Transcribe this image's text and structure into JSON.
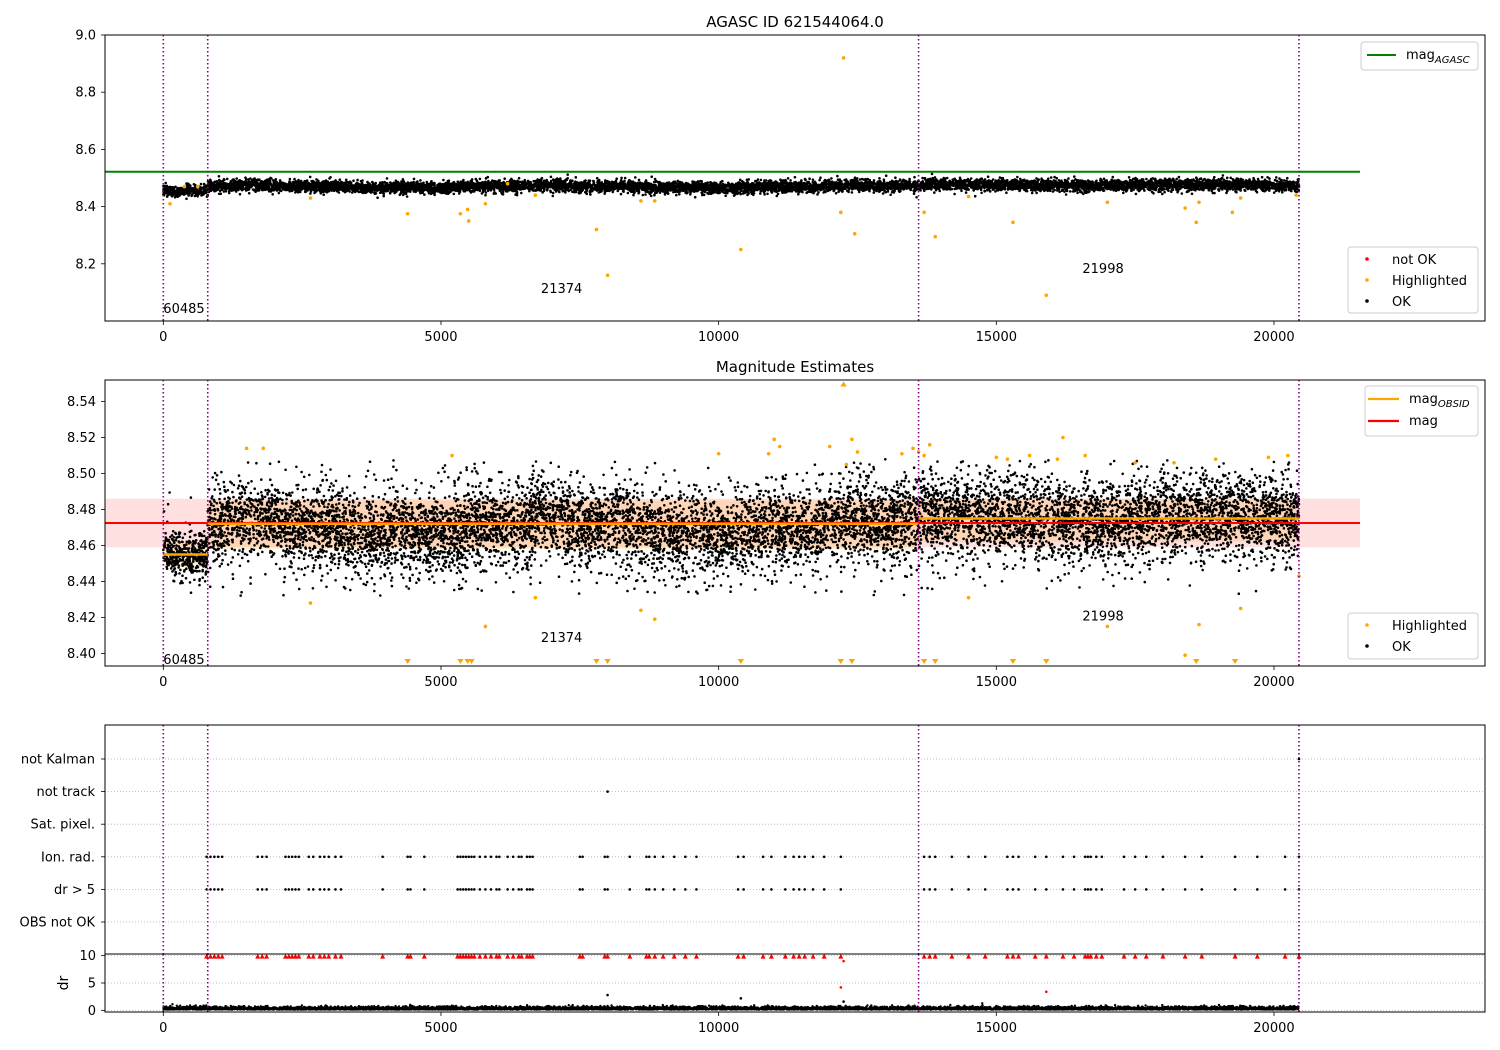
{
  "colors": {
    "ok": "#000000",
    "highlighted": "#ffa500",
    "not_ok": "#ff0000",
    "agasc_line": "#008000",
    "obsid_line": "#ffa500",
    "mag_line": "#ff0000",
    "obs_boundary": "#800080",
    "band_fill": "#ff0000",
    "grid": "#b0b0b0"
  },
  "chart_data": [
    {
      "type": "scatter",
      "title": "AGASC ID 621544064.0",
      "xlim": [
        -1050,
        23800
      ],
      "ylim": [
        8.0,
        9.0
      ],
      "x_ticks": [
        0,
        5000,
        10000,
        15000,
        20000
      ],
      "y_ticks": [
        8.2,
        8.4,
        8.6,
        8.8,
        9.0
      ],
      "obs_boundaries": [
        0,
        800,
        13600,
        20450
      ],
      "obs_labels": [
        {
          "text": "60485",
          "x": 0,
          "y": 8.045
        },
        {
          "text": "21374",
          "x": 6800,
          "y": 8.115
        },
        {
          "text": "21998",
          "x": 16550,
          "y": 8.185
        }
      ],
      "agasc_mag": 8.522,
      "agasc_line_x": [
        -1050,
        21550
      ],
      "ok_band": {
        "center": 8.472,
        "half_width": 0.018
      },
      "highlighted_points": [
        [
          120,
          8.41
        ],
        [
          380,
          8.47
        ],
        [
          620,
          8.47
        ],
        [
          2650,
          8.43
        ],
        [
          4400,
          8.375
        ],
        [
          5350,
          8.375
        ],
        [
          5480,
          8.39
        ],
        [
          5500,
          8.35
        ],
        [
          5800,
          8.41
        ],
        [
          6200,
          8.48
        ],
        [
          6700,
          8.44
        ],
        [
          7800,
          8.32
        ],
        [
          8000,
          8.16
        ],
        [
          8600,
          8.42
        ],
        [
          8850,
          8.42
        ],
        [
          10400,
          8.25
        ],
        [
          12200,
          8.38
        ],
        [
          12250,
          8.92
        ],
        [
          12450,
          8.305
        ],
        [
          13700,
          8.38
        ],
        [
          13900,
          8.295
        ],
        [
          14500,
          8.435
        ],
        [
          15300,
          8.345
        ],
        [
          15900,
          8.09
        ],
        [
          17000,
          8.415
        ],
        [
          18400,
          8.395
        ],
        [
          18600,
          8.345
        ],
        [
          18650,
          8.415
        ],
        [
          19250,
          8.38
        ],
        [
          19400,
          8.43
        ],
        [
          20400,
          8.44
        ]
      ],
      "legend_line": [
        {
          "label": "mag",
          "subscript": "AGASC"
        }
      ],
      "legend_points": [
        "not OK",
        "Highlighted",
        "OK"
      ]
    },
    {
      "type": "scatter",
      "title": "Magnitude Estimates",
      "xlim": [
        -1050,
        23800
      ],
      "ylim": [
        8.393,
        8.552
      ],
      "x_ticks": [
        0,
        5000,
        10000,
        15000,
        20000
      ],
      "y_ticks": [
        8.4,
        8.42,
        8.44,
        8.46,
        8.48,
        8.5,
        8.52,
        8.54
      ],
      "obs_boundaries": [
        0,
        800,
        13600,
        20450
      ],
      "obs_labels": [
        {
          "text": "60485",
          "x": 0,
          "y": 8.397
        },
        {
          "text": "21374",
          "x": 6800,
          "y": 8.409
        },
        {
          "text": "21998",
          "x": 16550,
          "y": 8.421
        }
      ],
      "mag": 8.4725,
      "mag_line_x": [
        -1050,
        21550
      ],
      "mag_band": [
        8.459,
        8.486
      ],
      "obsid_mags": [
        {
          "x": [
            0,
            800
          ],
          "mag": 8.455
        },
        {
          "x": [
            800,
            13600
          ],
          "mag": 8.472
        },
        {
          "x": [
            13600,
            20450
          ],
          "mag": 8.475
        }
      ],
      "obsid_bands": [
        {
          "x": [
            0,
            800
          ],
          "range": [
            8.448,
            8.462
          ]
        },
        {
          "x": [
            800,
            13600
          ],
          "range": [
            8.458,
            8.485
          ]
        },
        {
          "x": [
            13600,
            20450
          ],
          "range": [
            8.462,
            8.486
          ]
        }
      ],
      "highlighted_points": [
        [
          1500,
          8.514
        ],
        [
          1800,
          8.514
        ],
        [
          2650,
          8.428
        ],
        [
          5200,
          8.51
        ],
        [
          5800,
          8.415
        ],
        [
          6700,
          8.431
        ],
        [
          8600,
          8.424
        ],
        [
          8850,
          8.419
        ],
        [
          10000,
          8.511
        ],
        [
          10900,
          8.511
        ],
        [
          11000,
          8.519
        ],
        [
          11100,
          8.515
        ],
        [
          12000,
          8.515
        ],
        [
          12300,
          8.505
        ],
        [
          12400,
          8.519
        ],
        [
          12500,
          8.512
        ],
        [
          13300,
          8.511
        ],
        [
          13500,
          8.514
        ],
        [
          13600,
          8.512
        ],
        [
          13700,
          8.51
        ],
        [
          13800,
          8.516
        ],
        [
          14500,
          8.431
        ],
        [
          15000,
          8.509
        ],
        [
          15200,
          8.508
        ],
        [
          15600,
          8.51
        ],
        [
          16100,
          8.508
        ],
        [
          16200,
          8.52
        ],
        [
          16600,
          8.51
        ],
        [
          17000,
          8.415
        ],
        [
          17500,
          8.506
        ],
        [
          18200,
          8.506
        ],
        [
          18400,
          8.399
        ],
        [
          18650,
          8.416
        ],
        [
          18950,
          8.508
        ],
        [
          19400,
          8.425
        ],
        [
          19900,
          8.509
        ],
        [
          20250,
          8.51
        ],
        [
          20450,
          8.443
        ]
      ],
      "below_axis_markers": [
        4400,
        5350,
        5480,
        5550,
        7800,
        8000,
        10400,
        12200,
        12400,
        13700,
        13900,
        15300,
        15900,
        18600,
        19300
      ],
      "above_axis_markers": [
        12250
      ],
      "legend_line": [
        {
          "label": "mag",
          "subscript": "OBSID"
        },
        {
          "label": "mag",
          "subscript": ""
        }
      ],
      "legend_points": [
        "Highlighted",
        "OK"
      ]
    },
    {
      "type": "scatter",
      "xlim": [
        -1050,
        23800
      ],
      "x_ticks": [
        0,
        5000,
        10000,
        15000,
        20000
      ],
      "categories": [
        "not Kalman",
        "not track",
        "Sat. pixel.",
        "Ion. rad.",
        "dr > 5",
        "OBS not OK"
      ],
      "obs_boundaries": [
        0,
        800,
        13600,
        20450
      ],
      "flag_events": {
        "not Kalman": [
          20450
        ],
        "not track": [
          8000
        ],
        "Sat. pixel.": [],
        "Ion. rad.": [
          780,
          850,
          920,
          990,
          1060,
          1700,
          1780,
          1860,
          2200,
          2260,
          2320,
          2380,
          2440,
          2620,
          2700,
          2820,
          2900,
          2980,
          3100,
          3200,
          3950,
          4400,
          4450,
          4700,
          5300,
          5350,
          5400,
          5450,
          5500,
          5550,
          5600,
          5700,
          5800,
          5900,
          6000,
          6050,
          6200,
          6300,
          6400,
          6450,
          6550,
          6600,
          6650,
          7500,
          7550,
          7950,
          8000,
          8400,
          8700,
          8750,
          8850,
          9000,
          9200,
          9400,
          9600,
          10350,
          10450,
          10800,
          10950,
          11200,
          11350,
          11450,
          11550,
          11700,
          11900,
          12200,
          13700,
          13800,
          13900,
          14200,
          14500,
          14800,
          15200,
          15300,
          15400,
          15700,
          15900,
          16200,
          16400,
          16600,
          16650,
          16700,
          16800,
          16900,
          17300,
          17500,
          17700,
          18000,
          18400,
          18700,
          19300,
          19700,
          20200,
          20450
        ],
        "dr > 5": [
          780,
          850,
          920,
          990,
          1060,
          1700,
          1780,
          1860,
          2200,
          2260,
          2320,
          2380,
          2440,
          2620,
          2700,
          2820,
          2900,
          2980,
          3100,
          3200,
          3950,
          4400,
          4450,
          4700,
          5300,
          5350,
          5400,
          5450,
          5500,
          5550,
          5600,
          5700,
          5800,
          5900,
          6000,
          6050,
          6200,
          6300,
          6400,
          6450,
          6550,
          6600,
          6650,
          7500,
          7550,
          7950,
          8000,
          8400,
          8700,
          8750,
          8850,
          9000,
          9200,
          9400,
          9600,
          10350,
          10450,
          10800,
          10950,
          11200,
          11350,
          11450,
          11550,
          11700,
          11900,
          12200,
          13700,
          13800,
          13900,
          14200,
          14500,
          14800,
          15200,
          15300,
          15400,
          15700,
          15900,
          16200,
          16400,
          16600,
          16650,
          16700,
          16800,
          16900,
          17300,
          17500,
          17700,
          18000,
          18400,
          18700,
          19300,
          19700,
          20200,
          20450
        ],
        "OBS not OK": []
      }
    },
    {
      "type": "scatter",
      "ylabel": "dr",
      "xlim": [
        -1050,
        23800
      ],
      "ylim": [
        -0.3,
        10.3
      ],
      "x_ticks": [
        0,
        5000,
        10000,
        15000,
        20000
      ],
      "y_ticks": [
        0,
        5,
        10
      ],
      "obs_boundaries": [
        0,
        800,
        13600,
        20450
      ],
      "capped_markers": [
        780,
        850,
        920,
        990,
        1060,
        1700,
        1780,
        1860,
        2200,
        2260,
        2320,
        2380,
        2440,
        2620,
        2700,
        2820,
        2900,
        2980,
        3100,
        3200,
        3950,
        4400,
        4450,
        4700,
        5300,
        5350,
        5400,
        5450,
        5500,
        5550,
        5600,
        5700,
        5800,
        5900,
        6000,
        6050,
        6200,
        6300,
        6400,
        6450,
        6550,
        6600,
        6650,
        7500,
        7550,
        7950,
        8000,
        8400,
        8700,
        8750,
        8850,
        9000,
        9200,
        9400,
        9600,
        10350,
        10450,
        10800,
        10950,
        11200,
        11350,
        11450,
        11550,
        11700,
        11900,
        12200,
        13700,
        13800,
        13900,
        14200,
        14500,
        14800,
        15200,
        15300,
        15400,
        15700,
        15900,
        16200,
        16400,
        16600,
        16650,
        16700,
        16800,
        16900,
        17300,
        17500,
        17700,
        18000,
        18400,
        18700,
        19300,
        19700,
        20200,
        20450
      ],
      "outlier_points_ok": [
        [
          8000,
          2.8
        ],
        [
          10400,
          2.2
        ],
        [
          12250,
          1.6
        ]
      ],
      "outlier_points_not_ok": [
        [
          12200,
          4.2
        ],
        [
          12250,
          9.0
        ],
        [
          15900,
          3.4
        ]
      ]
    }
  ]
}
